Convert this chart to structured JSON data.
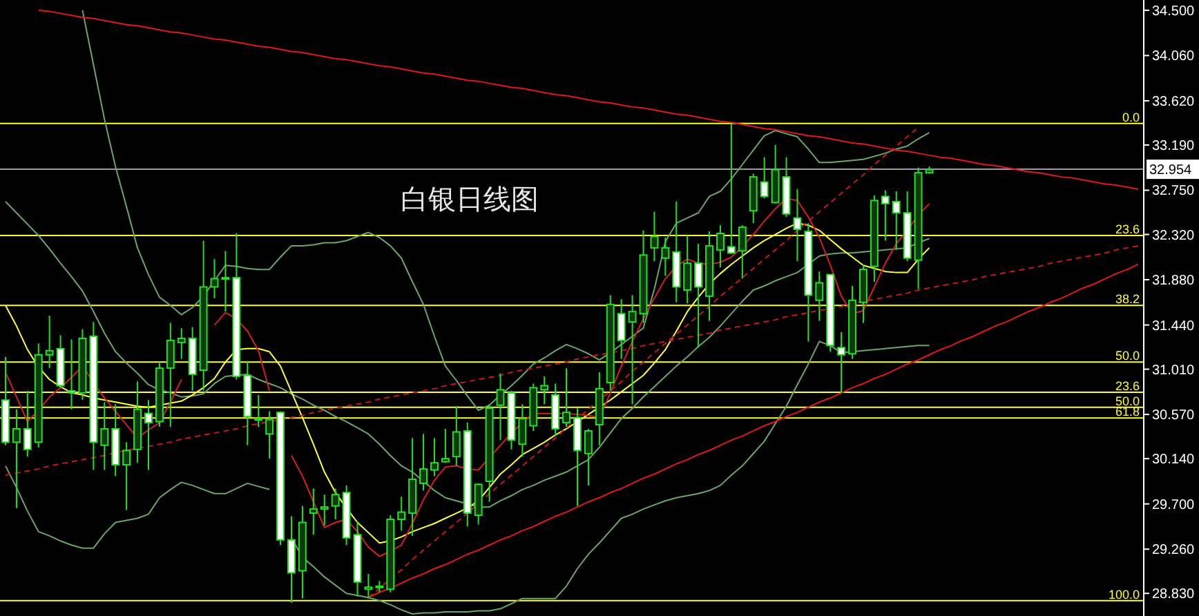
{
  "chart_data": {
    "type": "candlestick",
    "title": "白银日线图",
    "ylim": [
      28.61,
      34.6
    ],
    "tick_labels": "y",
    "categories": [
      null,
      null,
      null,
      null,
      null,
      null,
      null,
      null,
      null,
      null,
      null,
      null,
      null,
      null,
      null,
      null,
      null,
      null,
      null,
      null,
      null,
      null,
      null,
      null,
      null,
      null,
      null,
      null,
      null,
      null,
      null,
      null,
      null,
      null,
      null,
      null,
      null,
      null,
      null,
      null,
      null,
      null,
      null,
      null,
      null,
      null,
      null,
      null,
      null,
      null,
      null,
      null,
      null,
      null,
      null,
      null,
      null,
      null,
      null,
      null,
      null,
      null,
      null,
      null,
      null,
      null,
      null,
      null,
      null,
      null,
      null,
      null,
      null,
      null,
      null,
      null,
      null,
      null,
      null,
      null,
      null,
      null,
      null,
      null,
      null,
      null,
      null,
      null,
      null,
      null,
      null,
      null,
      null,
      null,
      null,
      null,
      null,
      null,
      null,
      null,
      null,
      null,
      null,
      null
    ],
    "yticks": [
      {
        "value": 34.5,
        "label": "34.500"
      },
      {
        "value": 34.06,
        "label": "34.060"
      },
      {
        "value": 33.62,
        "label": "33.620"
      },
      {
        "value": 33.19,
        "label": "33.190"
      },
      {
        "value": 32.75,
        "label": "32.750"
      },
      {
        "value": 32.32,
        "label": "32.320"
      },
      {
        "value": 31.88,
        "label": "31.880"
      },
      {
        "value": 31.44,
        "label": "31.440"
      },
      {
        "value": 31.01,
        "label": "31.010"
      },
      {
        "value": 30.57,
        "label": "30.570"
      },
      {
        "value": 30.14,
        "label": "30.140"
      },
      {
        "value": 29.7,
        "label": "29.700"
      },
      {
        "value": 29.26,
        "label": "29.260"
      },
      {
        "value": 28.83,
        "label": "28.830"
      }
    ],
    "ref_lines": [
      {
        "axis": "y",
        "value": 33.4,
        "color": "#ffff33"
      },
      {
        "axis": "y",
        "value": 32.31,
        "color": "#ffff33"
      },
      {
        "axis": "y",
        "value": 31.63,
        "color": "#ffff33"
      },
      {
        "axis": "y",
        "value": 31.08,
        "color": "#ffff33"
      },
      {
        "axis": "y",
        "value": 30.785,
        "color": "#ffff33"
      },
      {
        "axis": "y",
        "value": 30.64,
        "color": "#ffff33"
      },
      {
        "axis": "y",
        "value": 30.535,
        "color": "#ffff33"
      },
      {
        "axis": "y",
        "value": 28.76,
        "color": "#ffff33"
      },
      {
        "axis": "y",
        "value": 32.954,
        "label": "32.954",
        "color": "#9a9aa6"
      }
    ],
    "annotations": [
      {
        "text": "0.0",
        "y": 33.4
      },
      {
        "text": "23.6",
        "y": 32.31
      },
      {
        "text": "38.2",
        "y": 31.63
      },
      {
        "text": "50.0",
        "y": 31.08
      },
      {
        "text": "23.6",
        "y": 30.785
      },
      {
        "text": "50.0",
        "y": 30.64
      },
      {
        "text": "61.8",
        "y": 30.535
      },
      {
        "text": "100.0",
        "y": 28.76
      }
    ],
    "series": [
      {
        "type": "line",
        "color": "#6aa86a",
        "values": [
          null,
          null,
          null,
          null,
          null,
          null,
          null,
          34.5,
          33.97,
          33.44,
          32.98,
          32.59,
          32.19,
          31.93,
          31.71,
          31.63,
          31.54,
          31.61,
          31.72,
          31.87,
          32.02,
          32.01,
          31.99,
          31.98,
          31.98,
          32.1,
          32.21,
          32.21,
          32.22,
          32.24,
          32.24,
          32.26,
          32.3,
          32.34,
          32.29,
          32.21,
          32.09,
          31.86,
          31.64,
          31.33,
          31.04,
          30.9,
          30.75,
          30.61,
          30.66,
          30.76,
          30.85,
          30.95,
          31.06,
          31.12,
          31.19,
          31.25,
          31.21,
          31.16,
          31.1,
          31.17,
          31.25,
          31.33,
          31.41,
          31.79,
          32.25,
          32.43,
          32.48,
          32.53,
          32.69,
          32.74,
          32.86,
          33,
          33.14,
          33.28,
          33.33,
          33.3,
          33.27,
          33.15,
          33.02,
          33.02,
          33.03,
          33.04,
          33.05,
          33.08,
          33.11,
          33.15,
          33.18,
          33.25,
          33.31,
          null,
          null,
          null,
          null,
          null,
          null,
          null,
          null,
          null,
          null,
          null,
          null,
          null,
          null,
          null,
          null,
          null,
          null,
          null
        ]
      },
      {
        "type": "line",
        "color": "#6aa86a",
        "values": [
          32.64,
          32.53,
          32.42,
          32.31,
          32.18,
          32.04,
          31.91,
          31.77,
          31.57,
          31.36,
          31.18,
          31.07,
          30.97,
          30.86,
          30.81,
          30.78,
          30.74,
          30.75,
          30.77,
          30.87,
          30.94,
          30.95,
          30.96,
          30.91,
          30.87,
          30.83,
          30.77,
          30.72,
          30.66,
          30.61,
          30.55,
          30.5,
          30.44,
          30.38,
          30.28,
          30.17,
          30.07,
          30.01,
          29.92,
          29.83,
          29.76,
          29.73,
          29.7,
          29.67,
          29.67,
          29.73,
          29.78,
          29.84,
          29.88,
          29.93,
          29.97,
          30.01,
          30.07,
          30.13,
          30.25,
          30.39,
          30.53,
          30.63,
          30.74,
          30.84,
          30.94,
          31.04,
          31.13,
          31.23,
          31.32,
          31.43,
          31.55,
          31.67,
          31.78,
          31.82,
          31.87,
          31.91,
          31.95,
          32.03,
          32.11,
          32.13,
          32.14,
          32.14,
          32.15,
          32.16,
          32.17,
          32.18,
          32.19,
          32.24,
          32.28,
          null,
          null,
          null,
          null,
          null,
          null,
          null,
          null,
          null,
          null,
          null,
          null,
          null,
          null,
          null,
          null,
          null,
          null,
          null
        ]
      },
      {
        "type": "line",
        "color": "#6aa86a",
        "values": [
          30.07,
          29.86,
          29.63,
          29.43,
          29.39,
          29.34,
          29.3,
          29.27,
          29.27,
          29.41,
          29.52,
          29.54,
          29.56,
          29.6,
          29.76,
          29.84,
          29.91,
          29.88,
          29.84,
          29.8,
          29.8,
          29.85,
          29.9,
          29.87,
          29.84,
          null,
          29.37,
          29.18,
          29.09,
          28.99,
          28.91,
          28.83,
          28.81,
          28.79,
          28.76,
          28.72,
          28.67,
          28.63,
          28.64,
          28.64,
          28.65,
          28.65,
          28.65,
          28.66,
          28.66,
          28.68,
          28.73,
          28.78,
          28.78,
          28.78,
          28.78,
          28.9,
          29.07,
          29.21,
          29.32,
          29.44,
          29.56,
          29.6,
          29.65,
          29.69,
          29.73,
          29.76,
          29.78,
          29.8,
          29.83,
          29.88,
          29.98,
          30.07,
          30.19,
          30.31,
          30.48,
          30.65,
          30.86,
          31.06,
          31.28,
          31.24,
          31.17,
          31.18,
          31.19,
          31.2,
          31.21,
          31.22,
          31.23,
          31.24,
          31.24,
          null,
          null,
          null,
          null,
          null,
          null,
          null,
          null,
          null,
          null,
          null,
          null,
          null,
          null,
          null,
          null,
          null,
          null,
          null
        ]
      },
      {
        "type": "line",
        "color": "#ffff40",
        "values": [
          31.63,
          31.43,
          31.2,
          31.03,
          30.91,
          30.84,
          30.78,
          30.76,
          30.73,
          30.71,
          30.69,
          30.67,
          30.65,
          30.64,
          30.66,
          30.68,
          30.7,
          30.76,
          30.83,
          30.92,
          31.08,
          31.2,
          31.21,
          31.21,
          31.18,
          31.04,
          30.79,
          30.54,
          30.28,
          30.01,
          29.81,
          29.66,
          29.52,
          29.42,
          29.32,
          29.34,
          29.38,
          29.43,
          29.47,
          29.51,
          29.56,
          29.61,
          29.66,
          29.73,
          29.86,
          29.99,
          30.08,
          30.18,
          30.24,
          30.3,
          30.37,
          30.43,
          30.5,
          30.57,
          30.64,
          30.71,
          30.79,
          30.87,
          30.95,
          31.07,
          31.2,
          31.38,
          31.57,
          31.71,
          31.84,
          31.94,
          32.03,
          32.11,
          32.19,
          32.26,
          32.32,
          32.38,
          32.43,
          32.41,
          32.36,
          32.27,
          32.18,
          32.1,
          32.02,
          31.99,
          31.96,
          31.95,
          31.95,
          32.08,
          32.19,
          null,
          null,
          null,
          null,
          null,
          null,
          null,
          null,
          null,
          null,
          null,
          null,
          null,
          null,
          null,
          null,
          null,
          null,
          null
        ]
      },
      {
        "type": "line",
        "color": "#d42020",
        "values": [
          30.98,
          30.74,
          30.5,
          30.61,
          30.74,
          30.83,
          30.93,
          31.04,
          30.88,
          30.73,
          30.6,
          30.47,
          30.34,
          30.42,
          30.49,
          30.69,
          30.91,
          null,
          null,
          31.44,
          31.56,
          31.5,
          31.38,
          31.19,
          30.8,
          null,
          30.17,
          29.97,
          29.72,
          29.47,
          29.52,
          29.55,
          29.43,
          29.28,
          29.19,
          29.24,
          29.3,
          29.51,
          29.74,
          29.93,
          30.06,
          30.07,
          30.04,
          30.03,
          30.15,
          30.27,
          30.39,
          30.49,
          30.58,
          30.58,
          30.58,
          30.58,
          30.57,
          30.56,
          30.54,
          30.78,
          31.04,
          31.28,
          31.5,
          31.7,
          31.89,
          32.01,
          32.08,
          32.04,
          32.03,
          32.05,
          32.1,
          32.2,
          32.32,
          32.45,
          32.57,
          32.67,
          32.65,
          32.49,
          32.29,
          32.02,
          31.72,
          31.55,
          31.58,
          31.81,
          32.04,
          32.23,
          32.36,
          32.51,
          32.62,
          null,
          null,
          null,
          null,
          null,
          null,
          null,
          null,
          null,
          null,
          null,
          null,
          null,
          null,
          null,
          null,
          null,
          null,
          null
        ]
      },
      {
        "type": "line",
        "color": "#e01818",
        "values": [
          null,
          null,
          null,
          34.5,
          34.49,
          34.47,
          34.45,
          34.43,
          34.42,
          34.4,
          34.38,
          34.36,
          34.35,
          34.33,
          34.31,
          34.29,
          34.28,
          34.26,
          34.24,
          34.22,
          34.21,
          34.19,
          34.17,
          34.15,
          34.14,
          34.12,
          34.1,
          34.09,
          34.07,
          34.05,
          34.03,
          34.02,
          34,
          33.98,
          33.96,
          33.95,
          33.93,
          33.91,
          33.89,
          33.88,
          33.86,
          33.84,
          33.82,
          33.81,
          33.79,
          33.77,
          33.75,
          33.74,
          33.72,
          33.7,
          33.68,
          33.67,
          33.65,
          33.63,
          33.61,
          33.6,
          33.58,
          33.56,
          33.55,
          33.53,
          33.51,
          33.49,
          33.48,
          33.46,
          33.44,
          33.42,
          33.41,
          33.39,
          33.37,
          33.35,
          33.34,
          33.32,
          33.3,
          33.28,
          33.27,
          33.25,
          33.23,
          33.21,
          33.2,
          33.18,
          33.16,
          33.14,
          33.13,
          33.11,
          33.09,
          33.07,
          33.06,
          33.04,
          33.02,
          33,
          32.99,
          32.97,
          32.95,
          32.93,
          32.92,
          32.9,
          32.88,
          32.87,
          32.85,
          32.83,
          32.81,
          32.8,
          32.78,
          32.76
        ]
      },
      {
        "type": "line",
        "color": "#e01818",
        "values": [
          null,
          null,
          null,
          null,
          null,
          null,
          null,
          null,
          null,
          null,
          null,
          null,
          null,
          null,
          null,
          null,
          null,
          null,
          null,
          null,
          null,
          null,
          null,
          null,
          null,
          null,
          null,
          null,
          null,
          null,
          null,
          null,
          null,
          28.79,
          28.84,
          28.88,
          28.93,
          28.98,
          29.02,
          29.07,
          29.11,
          29.16,
          29.21,
          29.25,
          29.3,
          29.35,
          29.39,
          29.44,
          29.48,
          29.53,
          29.58,
          29.62,
          29.67,
          29.72,
          29.76,
          29.81,
          29.85,
          29.9,
          29.95,
          29.99,
          30.04,
          30.09,
          30.13,
          30.18,
          30.22,
          30.27,
          30.32,
          30.36,
          30.41,
          30.46,
          30.5,
          30.55,
          30.59,
          30.64,
          30.69,
          30.73,
          30.78,
          30.83,
          30.87,
          30.92,
          30.96,
          31.01,
          31.06,
          31.1,
          31.15,
          31.2,
          31.24,
          31.29,
          31.33,
          31.38,
          31.43,
          31.47,
          31.52,
          31.57,
          31.61,
          31.66,
          31.7,
          31.75,
          31.8,
          31.84,
          31.89,
          31.94,
          31.98,
          32.03
        ]
      },
      {
        "type": "line",
        "color": "#c81818",
        "line_style": "dashed",
        "values": [
          29.98,
          30,
          30.02,
          30.04,
          30.07,
          30.09,
          30.11,
          30.13,
          30.15,
          30.17,
          30.2,
          30.22,
          30.24,
          30.26,
          30.28,
          30.3,
          30.33,
          30.35,
          30.37,
          30.39,
          30.41,
          30.43,
          30.46,
          30.48,
          30.5,
          30.52,
          30.54,
          30.56,
          30.59,
          30.61,
          30.63,
          30.65,
          30.67,
          30.69,
          30.72,
          30.74,
          30.76,
          30.78,
          30.8,
          30.82,
          30.85,
          30.87,
          30.89,
          30.91,
          30.93,
          30.95,
          30.98,
          31,
          31.02,
          31.04,
          31.06,
          31.08,
          31.11,
          31.13,
          31.15,
          31.17,
          31.19,
          31.21,
          31.24,
          31.26,
          31.28,
          31.3,
          31.32,
          31.34,
          31.36,
          31.39,
          31.41,
          31.43,
          31.45,
          31.47,
          31.49,
          31.52,
          31.54,
          31.56,
          31.58,
          31.6,
          31.62,
          31.65,
          31.67,
          31.69,
          31.71,
          31.73,
          31.75,
          31.78,
          31.8,
          31.82,
          31.84,
          31.86,
          31.88,
          31.91,
          31.93,
          31.95,
          31.97,
          31.99,
          32.01,
          32.04,
          32.06,
          32.08,
          32.1,
          32.12,
          32.14,
          32.17,
          32.19,
          32.21
        ]
      },
      {
        "type": "line",
        "color": "#c81818",
        "line_style": "dashed",
        "values": [
          null,
          null,
          null,
          null,
          null,
          null,
          null,
          null,
          null,
          null,
          null,
          null,
          null,
          null,
          null,
          null,
          null,
          null,
          null,
          null,
          null,
          null,
          null,
          null,
          null,
          null,
          null,
          null,
          null,
          null,
          null,
          null,
          null,
          28.79,
          28.88,
          28.97,
          29.06,
          29.16,
          29.25,
          29.34,
          29.43,
          29.52,
          29.61,
          29.7,
          29.8,
          29.89,
          29.98,
          30.07,
          30.16,
          30.25,
          30.34,
          30.44,
          30.53,
          30.62,
          30.71,
          30.8,
          30.89,
          30.99,
          31.08,
          31.17,
          31.26,
          31.35,
          31.44,
          31.53,
          31.62,
          31.72,
          31.81,
          31.9,
          31.99,
          32.08,
          32.17,
          32.26,
          32.36,
          32.45,
          32.54,
          32.63,
          32.72,
          32.81,
          32.9,
          33,
          33.09,
          33.18,
          33.27,
          33.36,
          null,
          null,
          null,
          null,
          null,
          null,
          null,
          null,
          null,
          null,
          null,
          null,
          null,
          null,
          null,
          null,
          null,
          null,
          null,
          null
        ]
      },
      {
        "color": "#22e022",
        "ohlc": [
          [
            30.71,
            31.13,
            30.27,
            30.3
          ],
          [
            30.3,
            30.62,
            29.66,
            30.43
          ],
          [
            30.43,
            30.8,
            30.16,
            30.23
          ],
          [
            30.3,
            31.26,
            30.25,
            31.15
          ],
          [
            31.15,
            31.53,
            31.02,
            31.19
          ],
          [
            31.21,
            31.34,
            30.83,
            30.85
          ],
          [
            30.8,
            31.3,
            30.62,
            30.78
          ],
          [
            30.78,
            31.4,
            30.71,
            31.31
          ],
          [
            31.33,
            31.47,
            30.03,
            30.3
          ],
          [
            30.27,
            30.69,
            30.03,
            30.43
          ],
          [
            30.43,
            30.67,
            29.97,
            30.08
          ],
          [
            30.08,
            30.3,
            29.64,
            30.22
          ],
          [
            30.23,
            30.89,
            30.1,
            30.62
          ],
          [
            30.58,
            30.71,
            30.03,
            30.49
          ],
          [
            30.5,
            31.07,
            30.45,
            31.02
          ],
          [
            31.02,
            31.46,
            30.45,
            31.29
          ],
          [
            31.27,
            31.41,
            31.11,
            31.31
          ],
          [
            31.31,
            31.42,
            30.8,
            30.96
          ],
          [
            31,
            32.26,
            30.8,
            31.81
          ],
          [
            31.81,
            32.08,
            31.7,
            31.89
          ],
          [
            31.89,
            32.16,
            31.57,
            31.9
          ],
          [
            31.9,
            32.33,
            30.91,
            30.94
          ],
          [
            30.95,
            31.09,
            30.27,
            30.55
          ],
          [
            30.53,
            30.76,
            30.45,
            30.52
          ],
          [
            30.38,
            30.6,
            30.14,
            30.52
          ],
          [
            30.59,
            30.6,
            29.3,
            29.35
          ],
          [
            29.35,
            29.58,
            28.74,
            29.03
          ],
          [
            29.05,
            29.68,
            28.78,
            29.52
          ],
          [
            29.61,
            29.85,
            29.4,
            29.65
          ],
          [
            29.65,
            29.79,
            29.49,
            29.67
          ],
          [
            29.68,
            29.85,
            29.55,
            29.79
          ],
          [
            29.81,
            29.88,
            29.3,
            29.37
          ],
          [
            29.4,
            29.53,
            28.8,
            28.94
          ],
          [
            28.87,
            29.02,
            28.78,
            28.89
          ],
          [
            28.89,
            28.95,
            28.84,
            28.9
          ],
          [
            28.87,
            29.59,
            28.84,
            29.55
          ],
          [
            29.55,
            29.77,
            29.44,
            29.62
          ],
          [
            29.61,
            30.34,
            29.39,
            29.94
          ],
          [
            29.9,
            30.38,
            29.83,
            30.04
          ],
          [
            30.03,
            30.34,
            29.97,
            30.1
          ],
          [
            30.11,
            30.43,
            30.1,
            30.14
          ],
          [
            30.16,
            30.65,
            30.07,
            30.4
          ],
          [
            30.41,
            30.49,
            29.48,
            29.61
          ],
          [
            29.59,
            29.9,
            29.5,
            29.89
          ],
          [
            29.92,
            30.67,
            29.72,
            30.63
          ],
          [
            30.66,
            30.97,
            30.32,
            30.81
          ],
          [
            30.78,
            30.8,
            30.23,
            30.32
          ],
          [
            30.28,
            30.67,
            30.16,
            30.53
          ],
          [
            30.46,
            30.87,
            30.41,
            30.83
          ],
          [
            30.81,
            30.94,
            30.67,
            30.85
          ],
          [
            30.76,
            30.87,
            30.36,
            30.43
          ],
          [
            30.49,
            31.02,
            30.45,
            30.59
          ],
          [
            30.54,
            30.63,
            29.68,
            30.22
          ],
          [
            30.19,
            30.43,
            29.88,
            30.41
          ],
          [
            30.47,
            30.98,
            30.27,
            30.82
          ],
          [
            30.88,
            31.73,
            30.8,
            31.64
          ],
          [
            31.55,
            31.69,
            31.11,
            31.29
          ],
          [
            31.47,
            31.73,
            30.67,
            31.57
          ],
          [
            31.55,
            32.36,
            31.46,
            32.12
          ],
          [
            32.19,
            32.54,
            32.06,
            32.3
          ],
          [
            32.09,
            32.29,
            31.92,
            32.19
          ],
          [
            32.15,
            32.64,
            31.66,
            31.81
          ],
          [
            31.78,
            32.31,
            31.65,
            32.04
          ],
          [
            32.04,
            32.23,
            31.22,
            31.81
          ],
          [
            31.72,
            32.35,
            31.48,
            32.21
          ],
          [
            32.17,
            32.41,
            32,
            32.33
          ],
          [
            32.2,
            33.4,
            32.13,
            32.14
          ],
          [
            32.16,
            32.41,
            31.89,
            32.39
          ],
          [
            32.55,
            32.91,
            32.43,
            32.88
          ],
          [
            32.83,
            33.07,
            32.67,
            32.69
          ],
          [
            32.63,
            33.19,
            32.62,
            32.95
          ],
          [
            32.88,
            33.07,
            32.49,
            32.52
          ],
          [
            32.48,
            32.76,
            32.06,
            32.37
          ],
          [
            32.35,
            32.43,
            31.28,
            31.73
          ],
          [
            31.68,
            31.96,
            31.48,
            31.85
          ],
          [
            31.93,
            31.93,
            31.18,
            31.24
          ],
          [
            31.22,
            31.37,
            30.78,
            31.15
          ],
          [
            31.16,
            31.82,
            31.11,
            31.68
          ],
          [
            31.66,
            32.03,
            31.46,
            31.98
          ],
          [
            32.01,
            32.7,
            31.86,
            32.65
          ],
          [
            32.69,
            32.75,
            32.26,
            32.62
          ],
          [
            32.64,
            32.74,
            32.17,
            32.53
          ],
          [
            32.53,
            32.74,
            32.06,
            32.09
          ],
          [
            32.07,
            32.97,
            31.79,
            32.92
          ],
          [
            32.92,
            32.98,
            32.91,
            32.95
          ],
          null,
          null,
          null,
          null,
          null,
          null,
          null,
          null,
          null,
          null,
          null,
          null,
          null,
          null,
          null,
          null,
          null,
          null,
          null
        ]
      }
    ]
  }
}
